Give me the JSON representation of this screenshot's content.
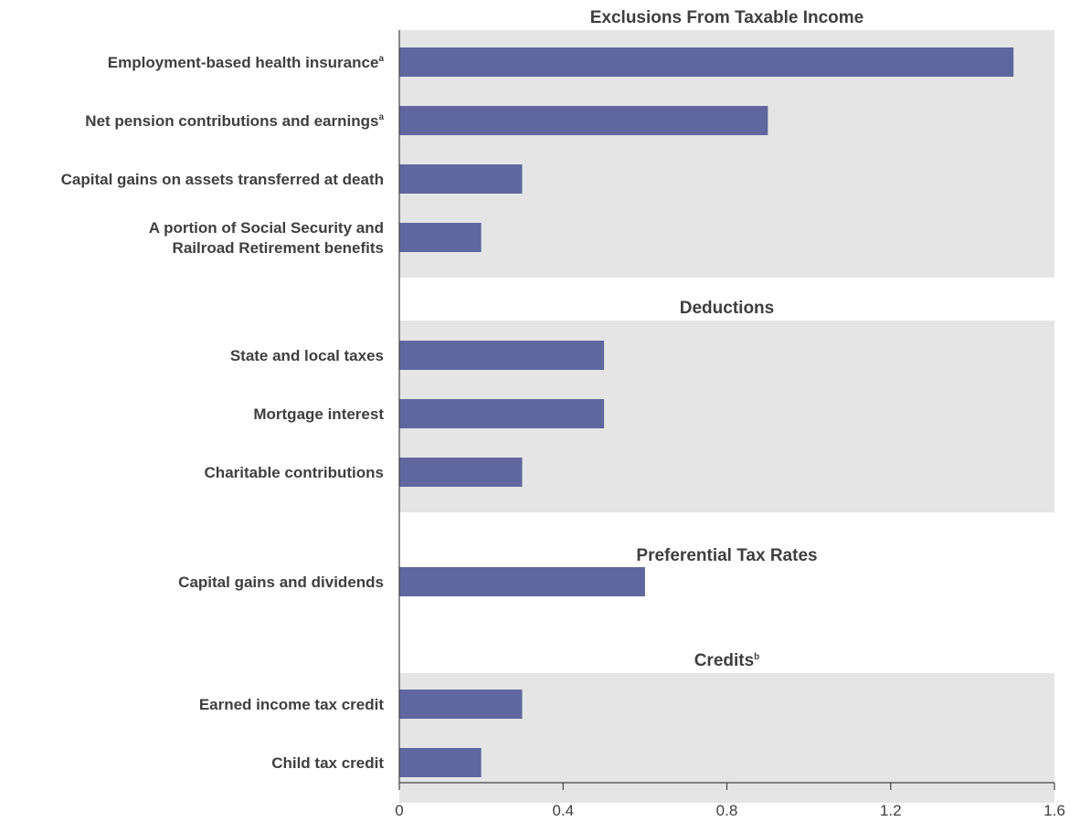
{
  "chart_data": {
    "type": "bar",
    "orientation": "horizontal",
    "xlim": [
      0,
      1.6
    ],
    "xticks": [
      "0",
      "0.4",
      "0.8",
      "1.2",
      "1.6"
    ],
    "grid": false,
    "colors": {
      "bar": "#5f679e",
      "band": "#e5e5e5",
      "axis": "#444444",
      "text": "#3f3f3f"
    },
    "groups": [
      {
        "title": "Exclusions From Taxable Income",
        "title_sup": "",
        "shaded": true,
        "items": [
          {
            "label": [
              "Employment-based health insurance"
            ],
            "sup": "a",
            "value": 1.5
          },
          {
            "label": [
              "Net pension contributions and earnings"
            ],
            "sup": "a",
            "value": 0.9
          },
          {
            "label": [
              "Capital gains on assets transferred at death"
            ],
            "sup": "",
            "value": 0.3
          },
          {
            "label": [
              "A portion of Social Security and",
              "Railroad Retirement benefits"
            ],
            "sup": "",
            "value": 0.2
          }
        ]
      },
      {
        "title": "Deductions",
        "title_sup": "",
        "shaded": true,
        "items": [
          {
            "label": [
              "State and local taxes"
            ],
            "sup": "",
            "value": 0.5
          },
          {
            "label": [
              "Mortgage interest"
            ],
            "sup": "",
            "value": 0.5
          },
          {
            "label": [
              "Charitable contributions"
            ],
            "sup": "",
            "value": 0.3
          }
        ]
      },
      {
        "title": "Preferential Tax Rates",
        "title_sup": "",
        "shaded": false,
        "items": [
          {
            "label": [
              "Capital gains and dividends"
            ],
            "sup": "",
            "value": 0.6
          }
        ]
      },
      {
        "title": "Credits",
        "title_sup": "b",
        "shaded": true,
        "items": [
          {
            "label": [
              "Earned income tax credit"
            ],
            "sup": "",
            "value": 0.3
          },
          {
            "label": [
              "Child tax credit"
            ],
            "sup": "",
            "value": 0.2
          }
        ]
      }
    ]
  }
}
